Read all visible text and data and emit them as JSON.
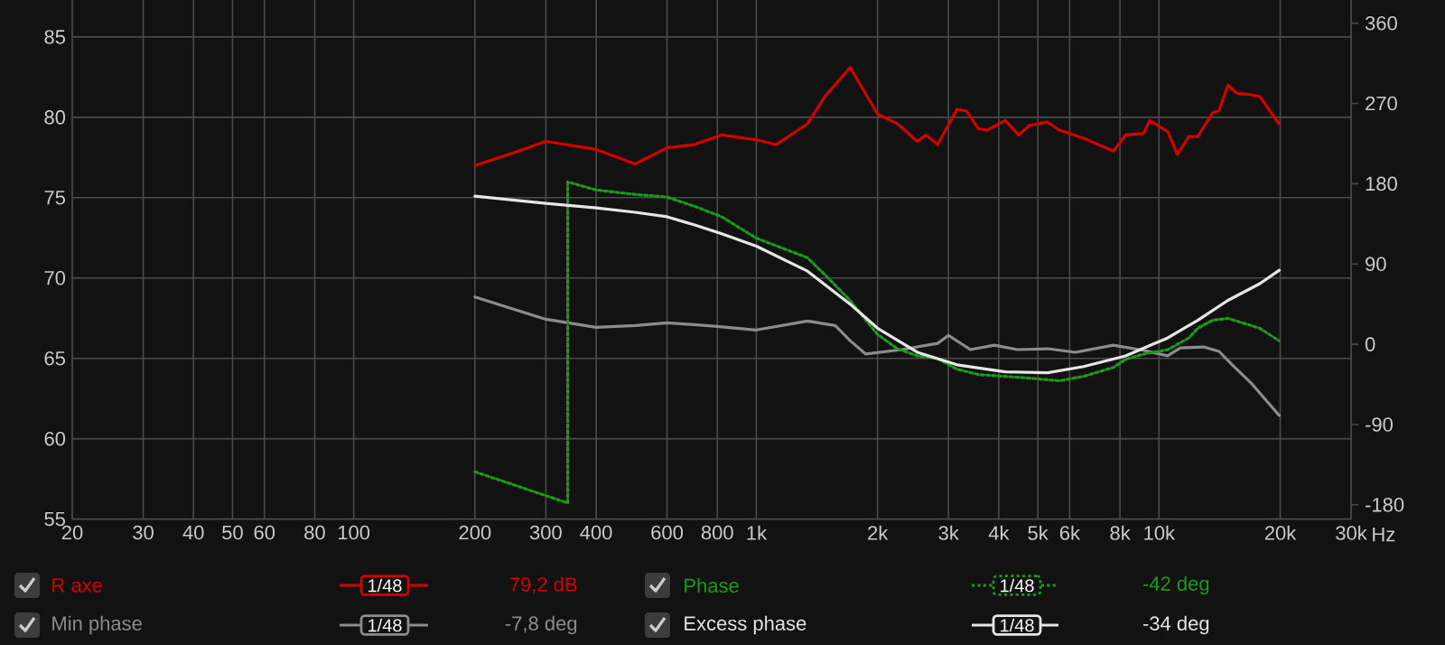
{
  "chart_data": {
    "type": "line",
    "log": "x",
    "grid": true,
    "legend": "bottom",
    "xlim": [
      20,
      30000
    ],
    "ylim": [
      55,
      87.3
    ],
    "y2lim": [
      -196,
      386
    ],
    "xticks": [
      20,
      30,
      40,
      50,
      60,
      80,
      100,
      200,
      300,
      400,
      600,
      800,
      {
        "value": 1000,
        "label": "1k"
      },
      {
        "value": 2000,
        "label": "2k"
      },
      {
        "value": 3000,
        "label": "3k"
      },
      {
        "value": 4000,
        "label": "4k"
      },
      {
        "value": 5000,
        "label": "5k"
      },
      {
        "value": 6000,
        "label": "6k"
      },
      {
        "value": 8000,
        "label": "8k"
      },
      {
        "value": 10000,
        "label": "10k"
      },
      {
        "value": 20000,
        "label": "20k"
      },
      {
        "value": 30000,
        "label": "30k"
      }
    ],
    "xlabel": "Hz",
    "yticks": [
      55,
      60,
      65,
      70,
      75,
      80,
      85
    ],
    "y2ticks": [
      -180,
      -90,
      0,
      90,
      180,
      270,
      360
    ],
    "annotations": [
      "1/48",
      "79,2 dB",
      "1/48",
      "-7,8 deg",
      "1/48",
      "-42 deg",
      "1/48",
      "-34 deg"
    ],
    "series": [
      {
        "name": "R axe",
        "color": "#d40000",
        "x": [
          200,
          250,
          300,
          400,
          500,
          600,
          700,
          820,
          1000,
          1120,
          1340,
          1480,
          1710,
          2000,
          2240,
          2510,
          2640,
          2820,
          3150,
          3320,
          3560,
          3740,
          4150,
          4480,
          4770,
          5290,
          5660,
          6490,
          7710,
          8260,
          9160,
          9480,
          10520,
          11100,
          11860,
          12480,
          13600,
          14090,
          14830,
          15600,
          16950,
          17790,
          19860
        ],
        "values": [
          77.0,
          77.8,
          78.5,
          78.0,
          77.1,
          78.1,
          78.3,
          78.9,
          78.6,
          78.3,
          79.6,
          81.3,
          83.1,
          80.2,
          79.6,
          78.5,
          78.9,
          78.3,
          80.5,
          80.4,
          79.3,
          79.2,
          79.8,
          78.9,
          79.5,
          79.7,
          79.2,
          78.7,
          77.9,
          78.9,
          79.0,
          79.8,
          79.1,
          77.7,
          78.8,
          78.8,
          80.3,
          80.4,
          82.0,
          81.5,
          81.4,
          81.3,
          79.6
        ]
      },
      {
        "name": "Min phase",
        "color": "#8c8c8c",
        "axis": "y2",
        "x": [
          200,
          300,
          400,
          500,
          600,
          700,
          800,
          1000,
          1340,
          1570,
          1710,
          1870,
          2300,
          2820,
          3000,
          3400,
          3900,
          4450,
          5300,
          6200,
          7700,
          9200,
          10500,
          11300,
          12900,
          14100,
          15200,
          16900,
          19900
        ],
        "values": [
          53,
          28,
          19,
          21,
          24,
          22,
          20,
          16,
          26,
          21,
          4,
          -11,
          -6,
          1,
          10,
          -6,
          -1,
          -6,
          -5,
          -9,
          -1,
          -7,
          -13,
          -4,
          -3,
          -8,
          -23,
          -43,
          -80
        ]
      },
      {
        "name": "Phase",
        "color": "#1a9a1a",
        "axis": "y2",
        "line_style": "dotted",
        "x": [
          200,
          340,
          340,
          400,
          500,
          600,
          700,
          820,
          1000,
          1340,
          1480,
          1710,
          2000,
          2240,
          2510,
          2820,
          3150,
          3560,
          4150,
          4770,
          5660,
          6490,
          7710,
          8260,
          9160,
          10520,
          11860,
          12480,
          13600,
          14830,
          16950,
          17790,
          19860
        ],
        "values": [
          -143,
          -178,
          182,
          173,
          168,
          165,
          155,
          143,
          119,
          97,
          78,
          49,
          11,
          -5,
          -13,
          -16,
          -28,
          -34,
          -36,
          -38,
          -41,
          -36,
          -26,
          -17,
          -11,
          -6,
          7,
          18,
          27,
          29,
          21,
          18,
          4
        ]
      },
      {
        "name": "Excess phase",
        "color": "#e6e6e6",
        "axis": "y2",
        "x": [
          200,
          300,
          400,
          500,
          600,
          700,
          820,
          1000,
          1340,
          1710,
          2000,
          2510,
          3150,
          4150,
          5290,
          6500,
          8260,
          10500,
          12500,
          14800,
          17800,
          19900
        ],
        "values": [
          166,
          158,
          153,
          148,
          143,
          134,
          124,
          110,
          82,
          45,
          18,
          -9,
          -23,
          -31,
          -32,
          -25,
          -13,
          7,
          27,
          49,
          68,
          83
        ]
      }
    ]
  }
}
